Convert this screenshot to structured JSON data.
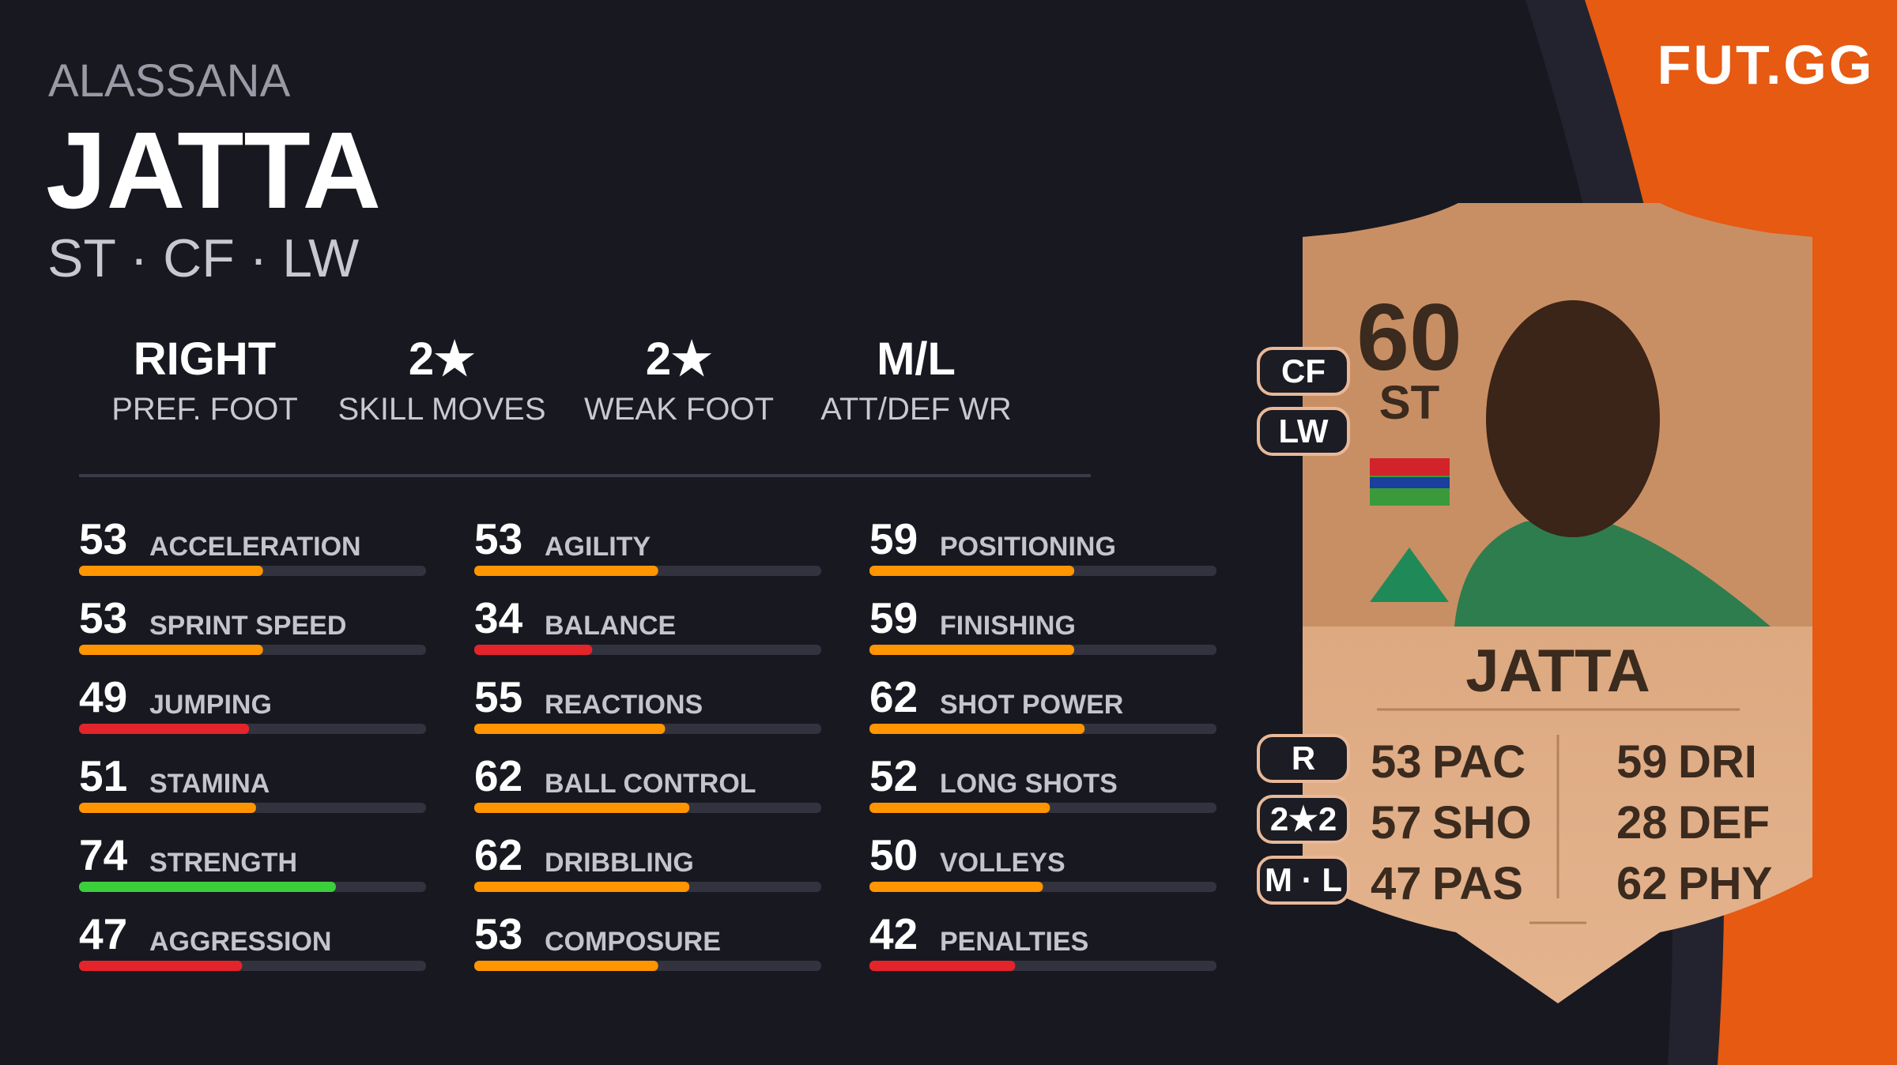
{
  "header": {
    "first_name": "ALASSANA",
    "last_name": "JATTA",
    "positions": "ST · CF · LW",
    "logo": "FUT.GG"
  },
  "info": [
    {
      "value": "RIGHT",
      "label": "PREF. FOOT"
    },
    {
      "value": "2★",
      "label": "SKILL MOVES"
    },
    {
      "value": "2★",
      "label": "WEAK FOOT"
    },
    {
      "value": "M/L",
      "label": "ATT/DEF WR"
    }
  ],
  "stats": [
    [
      {
        "value": 53,
        "label": "ACCELERATION"
      },
      {
        "value": 53,
        "label": "SPRINT SPEED"
      },
      {
        "value": 49,
        "label": "JUMPING"
      },
      {
        "value": 51,
        "label": "STAMINA"
      },
      {
        "value": 74,
        "label": "STRENGTH"
      },
      {
        "value": 47,
        "label": "AGGRESSION"
      }
    ],
    [
      {
        "value": 53,
        "label": "AGILITY"
      },
      {
        "value": 34,
        "label": "BALANCE"
      },
      {
        "value": 55,
        "label": "REACTIONS"
      },
      {
        "value": 62,
        "label": "BALL CONTROL"
      },
      {
        "value": 62,
        "label": "DRIBBLING"
      },
      {
        "value": 53,
        "label": "COMPOSURE"
      }
    ],
    [
      {
        "value": 59,
        "label": "POSITIONING"
      },
      {
        "value": 59,
        "label": "FINISHING"
      },
      {
        "value": 62,
        "label": "SHOT POWER"
      },
      {
        "value": 52,
        "label": "LONG SHOTS"
      },
      {
        "value": 50,
        "label": "VOLLEYS"
      },
      {
        "value": 42,
        "label": "PENALTIES"
      }
    ]
  ],
  "card": {
    "rating": 60,
    "position": "ST",
    "name": "JATTA",
    "alt_positions": [
      "CF",
      "LW"
    ],
    "badges": [
      "R",
      "2★2",
      "M · L"
    ],
    "stats": [
      [
        {
          "value": 53,
          "label": "PAC"
        },
        {
          "value": 57,
          "label": "SHO"
        },
        {
          "value": 47,
          "label": "PAS"
        }
      ],
      [
        {
          "value": 59,
          "label": "DRI"
        },
        {
          "value": 28,
          "label": "DEF"
        },
        {
          "value": 62,
          "label": "PHY"
        }
      ]
    ]
  }
}
